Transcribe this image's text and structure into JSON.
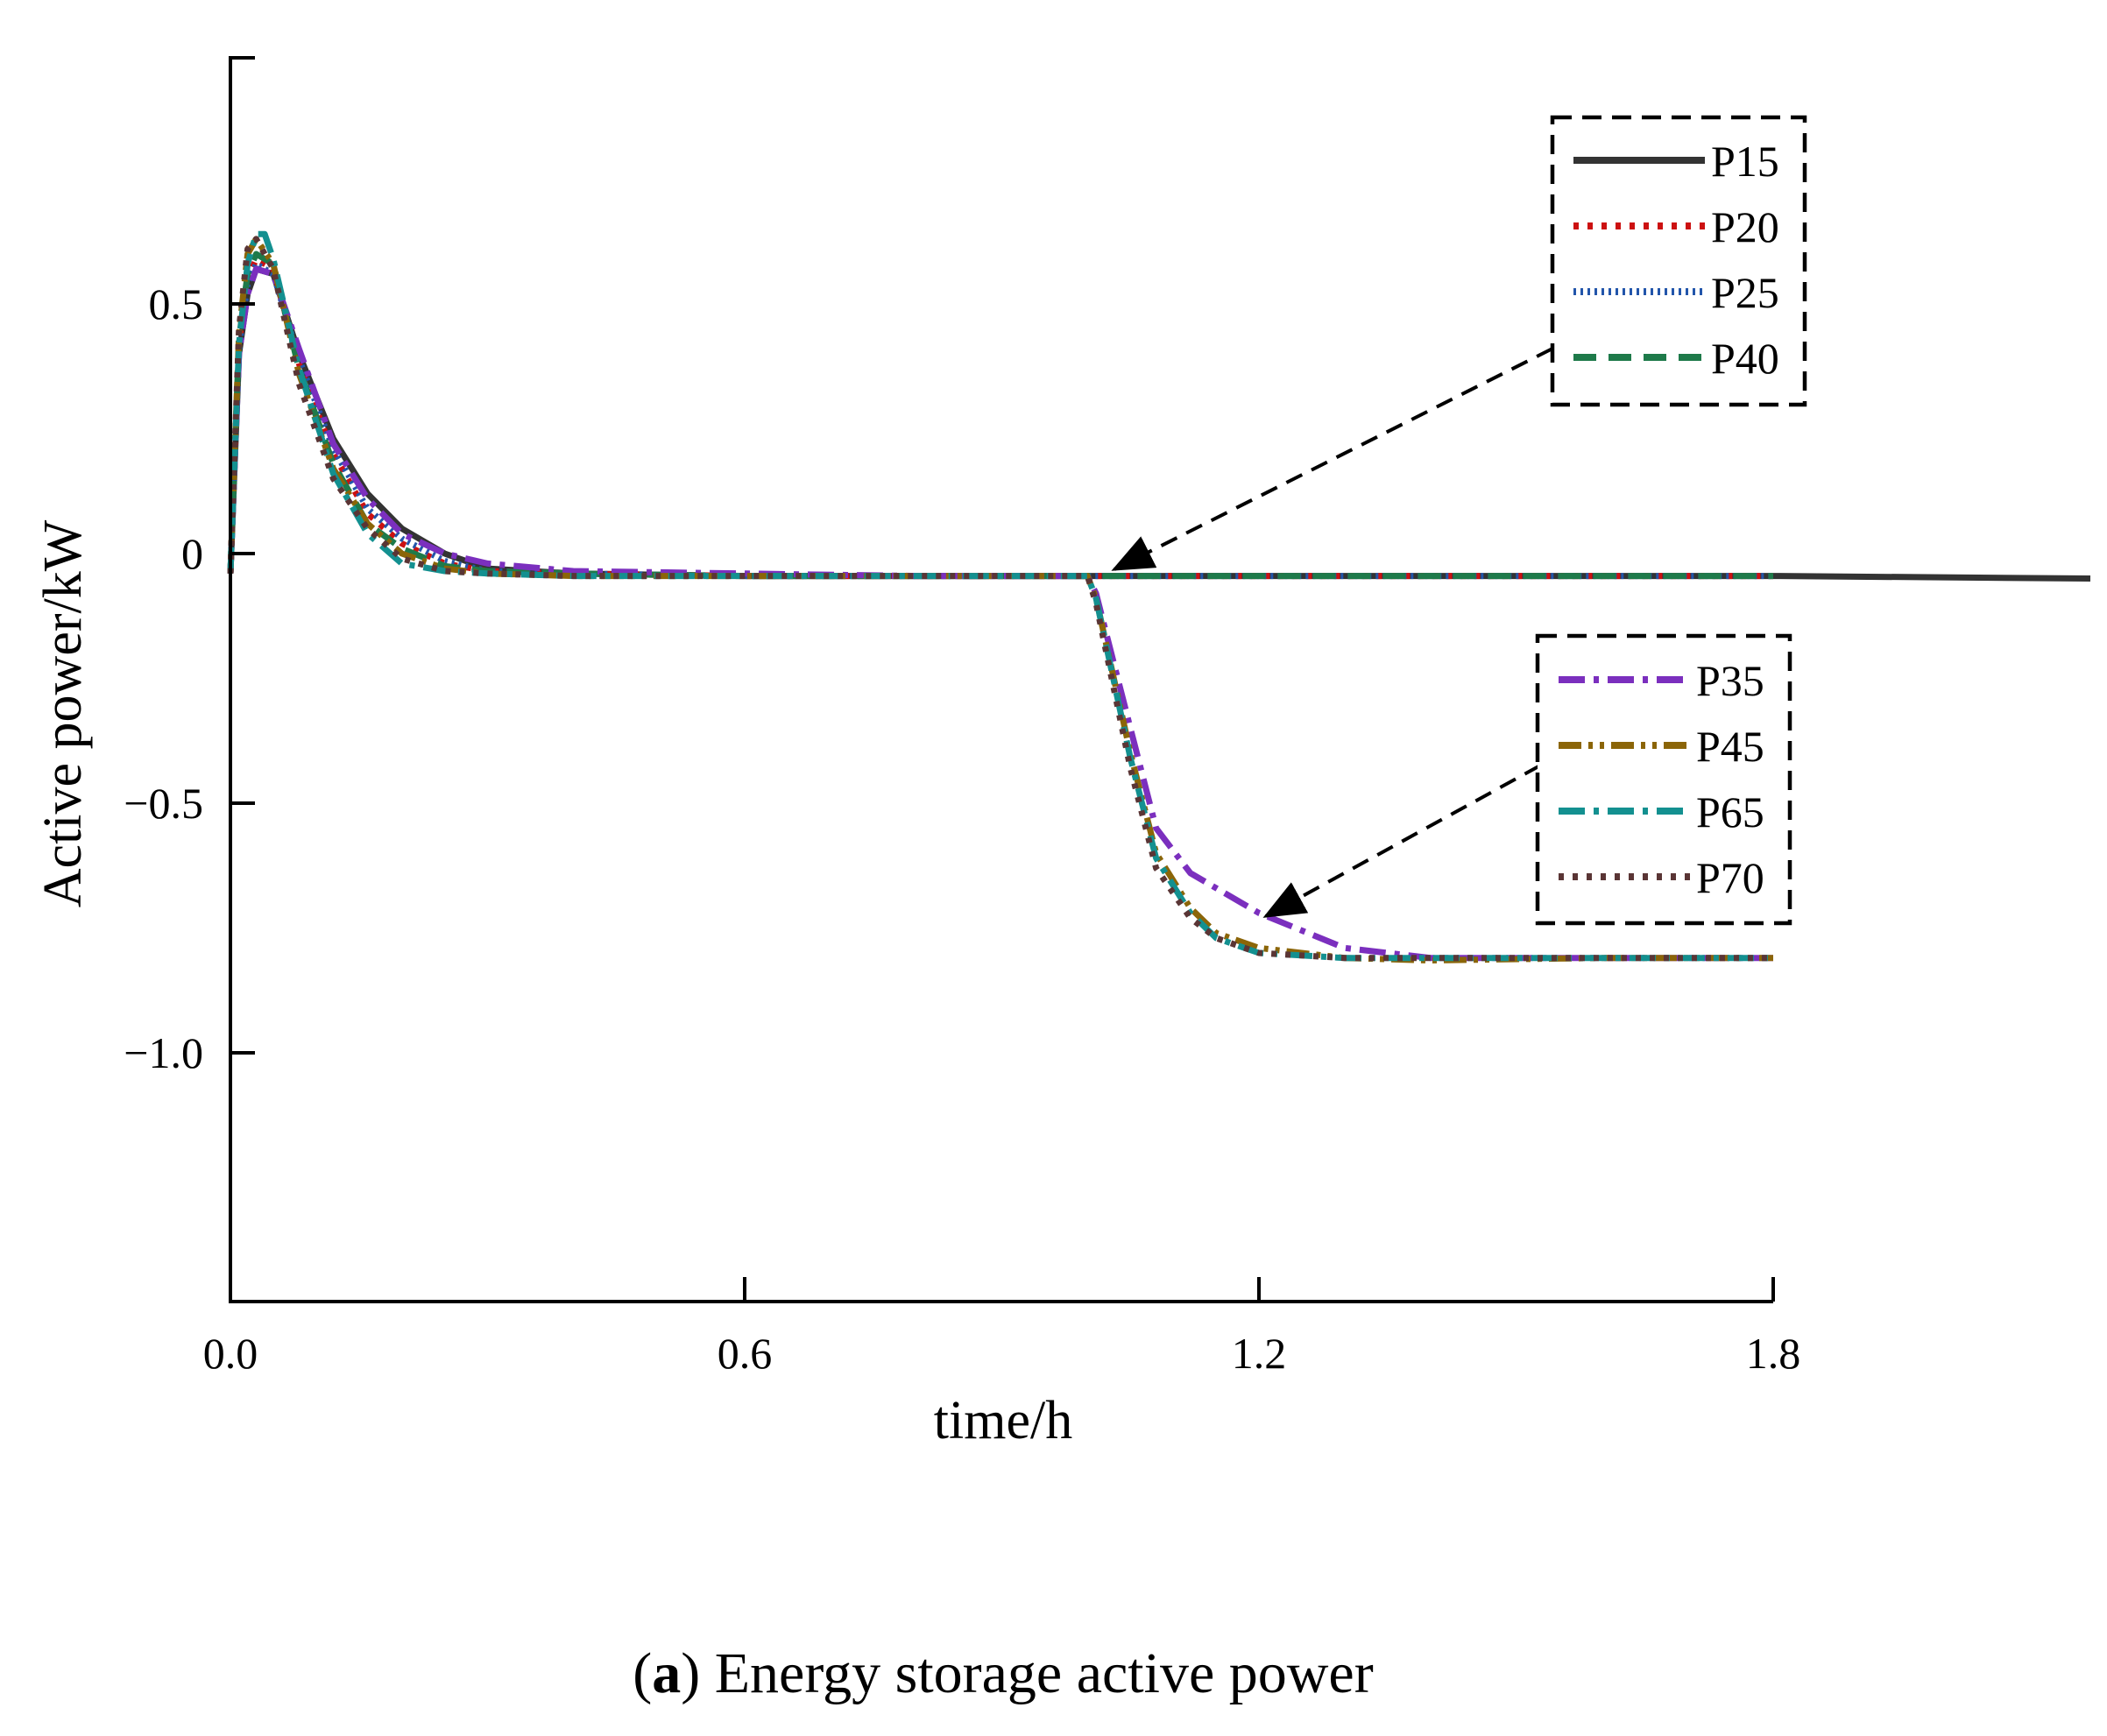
{
  "chart_data": {
    "type": "line",
    "caption": {
      "letter": "a",
      "text": "Energy storage active power"
    },
    "xlabel": "time/h",
    "ylabel": "Active power/kW",
    "xlim": [
      0,
      1.8
    ],
    "ylim": [
      -1.5,
      1.0
    ],
    "xticks": [
      {
        "value": 0.0,
        "label": "0.0"
      },
      {
        "value": 0.6,
        "label": "0.6"
      },
      {
        "value": 1.2,
        "label": "1.2"
      },
      {
        "value": 1.8,
        "label": "1.8"
      }
    ],
    "yticks": [
      {
        "value": 0.5,
        "label": "0.5"
      },
      {
        "value": 0.0,
        "label": "0"
      },
      {
        "value": -0.5,
        "label": "−0.5"
      },
      {
        "value": -1.0,
        "label": "−1.0"
      }
    ],
    "grid": false,
    "legend_groups": [
      {
        "position": "top-right",
        "entries": [
          "P15",
          "P20",
          "P25",
          "P40"
        ]
      },
      {
        "position": "center-right",
        "entries": [
          "P35",
          "P45",
          "P65",
          "P70"
        ]
      }
    ],
    "series": [
      {
        "name": "P15",
        "color": "#333333",
        "dash": "solid",
        "x": [
          0,
          0.01,
          0.02,
          0.03,
          0.05,
          0.08,
          0.12,
          0.16,
          0.2,
          0.25,
          0.3,
          0.4,
          0.6,
          0.8,
          1.0,
          1.2,
          1.4,
          1.6,
          1.8,
          2.17
        ],
        "y": [
          -0.04,
          0.4,
          0.52,
          0.57,
          0.56,
          0.4,
          0.23,
          0.12,
          0.05,
          0.0,
          -0.03,
          -0.04,
          -0.045,
          -0.045,
          -0.045,
          -0.045,
          -0.045,
          -0.045,
          -0.045,
          -0.05
        ]
      },
      {
        "name": "P20",
        "color": "#cc1111",
        "dash": "dotted",
        "x": [
          0,
          0.01,
          0.02,
          0.03,
          0.05,
          0.08,
          0.12,
          0.16,
          0.2,
          0.25,
          0.3,
          0.4,
          0.6,
          0.8,
          1.0,
          1.2,
          1.4,
          1.6,
          1.8
        ],
        "y": [
          -0.04,
          0.42,
          0.55,
          0.59,
          0.57,
          0.38,
          0.2,
          0.08,
          0.02,
          -0.02,
          -0.035,
          -0.04,
          -0.045,
          -0.045,
          -0.045,
          -0.045,
          -0.045,
          -0.045,
          -0.045
        ]
      },
      {
        "name": "P25",
        "color": "#2255aa",
        "dash": "fine",
        "x": [
          0,
          0.01,
          0.02,
          0.03,
          0.05,
          0.08,
          0.12,
          0.16,
          0.2,
          0.25,
          0.3,
          0.4,
          0.6,
          0.8,
          1.0,
          1.2,
          1.4,
          1.6,
          1.8
        ],
        "y": [
          -0.04,
          0.41,
          0.54,
          0.58,
          0.56,
          0.39,
          0.21,
          0.09,
          0.03,
          -0.015,
          -0.035,
          -0.04,
          -0.045,
          -0.045,
          -0.045,
          -0.045,
          -0.045,
          -0.045,
          -0.045
        ]
      },
      {
        "name": "P40",
        "color": "#1e7a4a",
        "dash": "dashed",
        "x": [
          0,
          0.01,
          0.02,
          0.03,
          0.05,
          0.08,
          0.12,
          0.16,
          0.2,
          0.25,
          0.3,
          0.4,
          0.6,
          0.8,
          1.0,
          1.2,
          1.4,
          1.6,
          1.8
        ],
        "y": [
          -0.04,
          0.43,
          0.56,
          0.6,
          0.58,
          0.37,
          0.18,
          0.06,
          0.01,
          -0.025,
          -0.035,
          -0.04,
          -0.045,
          -0.045,
          -0.045,
          -0.045,
          -0.045,
          -0.045,
          -0.045
        ]
      },
      {
        "name": "P35",
        "color": "#7b2fbe",
        "dash": "dashdot",
        "x": [
          0,
          0.01,
          0.02,
          0.03,
          0.05,
          0.08,
          0.12,
          0.16,
          0.2,
          0.25,
          0.3,
          0.4,
          0.6,
          0.8,
          1.0,
          1.01,
          1.05,
          1.08,
          1.12,
          1.2,
          1.3,
          1.4,
          1.6,
          1.8
        ],
        "y": [
          -0.04,
          0.4,
          0.52,
          0.57,
          0.56,
          0.41,
          0.22,
          0.11,
          0.04,
          0.0,
          -0.02,
          -0.035,
          -0.04,
          -0.045,
          -0.045,
          -0.08,
          -0.35,
          -0.55,
          -0.64,
          -0.72,
          -0.79,
          -0.81,
          -0.81,
          -0.81
        ]
      },
      {
        "name": "P45",
        "color": "#8b6508",
        "dash": "dashdotdot",
        "x": [
          0,
          0.01,
          0.02,
          0.03,
          0.05,
          0.08,
          0.12,
          0.16,
          0.2,
          0.25,
          0.3,
          0.4,
          0.6,
          0.8,
          1.0,
          1.01,
          1.05,
          1.08,
          1.12,
          1.15,
          1.2,
          1.3,
          1.4,
          1.6,
          1.8
        ],
        "y": [
          -0.04,
          0.44,
          0.6,
          0.63,
          0.58,
          0.36,
          0.17,
          0.06,
          0.0,
          -0.03,
          -0.04,
          -0.045,
          -0.045,
          -0.045,
          -0.045,
          -0.09,
          -0.4,
          -0.6,
          -0.71,
          -0.76,
          -0.79,
          -0.81,
          -0.815,
          -0.81,
          -0.81
        ]
      },
      {
        "name": "P65",
        "color": "#139090",
        "dash": "dashdot",
        "x": [
          0,
          0.01,
          0.02,
          0.03,
          0.04,
          0.05,
          0.08,
          0.12,
          0.16,
          0.2,
          0.25,
          0.3,
          0.4,
          0.6,
          0.8,
          1.0,
          1.01,
          1.05,
          1.08,
          1.12,
          1.15,
          1.2,
          1.3,
          1.4,
          1.6,
          1.8
        ],
        "y": [
          -0.04,
          0.42,
          0.58,
          0.64,
          0.64,
          0.59,
          0.37,
          0.16,
          0.04,
          -0.02,
          -0.035,
          -0.04,
          -0.045,
          -0.045,
          -0.045,
          -0.045,
          -0.09,
          -0.41,
          -0.61,
          -0.72,
          -0.77,
          -0.8,
          -0.81,
          -0.81,
          -0.81,
          -0.81
        ]
      },
      {
        "name": "P70",
        "color": "#5a3535",
        "dash": "dotted",
        "x": [
          0,
          0.01,
          0.02,
          0.03,
          0.05,
          0.08,
          0.12,
          0.16,
          0.2,
          0.25,
          0.3,
          0.4,
          0.6,
          0.8,
          1.0,
          1.01,
          1.05,
          1.08,
          1.12,
          1.15,
          1.2,
          1.3,
          1.4,
          1.6,
          1.8
        ],
        "y": [
          -0.04,
          0.45,
          0.61,
          0.63,
          0.57,
          0.34,
          0.15,
          0.05,
          -0.01,
          -0.035,
          -0.04,
          -0.045,
          -0.045,
          -0.045,
          -0.045,
          -0.1,
          -0.43,
          -0.63,
          -0.73,
          -0.77,
          -0.8,
          -0.81,
          -0.81,
          -0.81,
          -0.81
        ]
      }
    ]
  }
}
